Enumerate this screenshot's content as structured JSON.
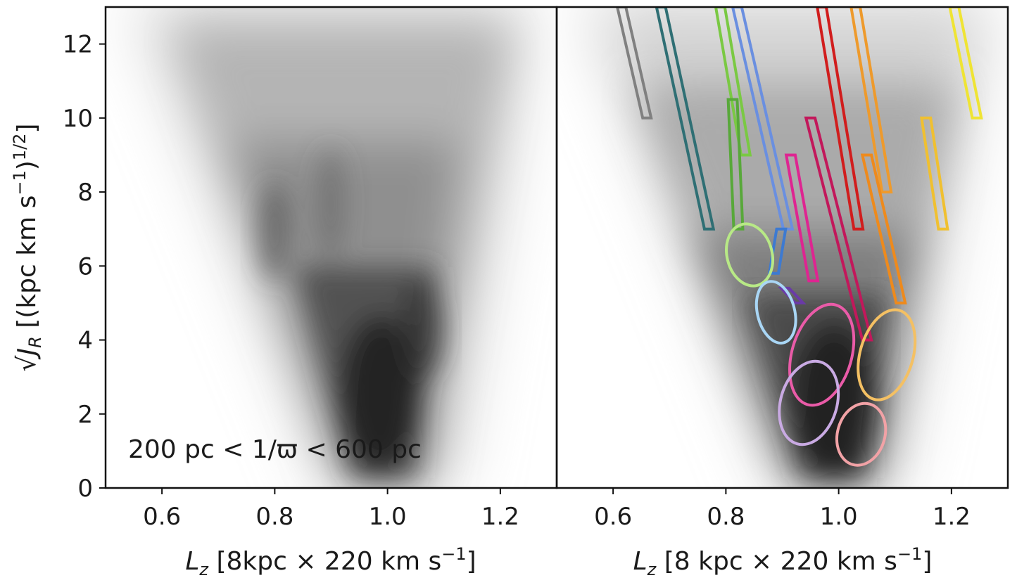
{
  "chart_data": [
    {
      "type": "scatter",
      "panel": "left",
      "title": "",
      "xlabel_prefix": "L",
      "xlabel_sub": "z",
      "xlabel_text": " [8kpc  × 220 km s",
      "xlabel_sup": "−1",
      "xlabel_close": "]",
      "ylabel_prefix": "√J",
      "ylabel_sub": "R",
      "ylabel_text": " [(kpc km s",
      "ylabel_sup1": "−1",
      "ylabel_mid": ")",
      "ylabel_sup2": "1/2",
      "ylabel_close": "]",
      "xlim": [
        0.5,
        1.3
      ],
      "ylim": [
        0,
        13
      ],
      "xticks": [
        0.6,
        0.8,
        1.0,
        1.2
      ],
      "xtick_labels": [
        "0.6",
        "0.8",
        "1.0",
        "1.2"
      ],
      "yticks": [
        0,
        2,
        4,
        6,
        8,
        10,
        12
      ],
      "ytick_labels": [
        "0",
        "2",
        "4",
        "6",
        "8",
        "10",
        "12"
      ],
      "annotation": "200 pc  < 1/ϖ < 600 pc",
      "density": "grayscale V-shaped star density, peak near Lz≈1.0, √JR≈2"
    },
    {
      "type": "scatter",
      "panel": "right",
      "xlabel_prefix": "L",
      "xlabel_sub": "z",
      "xlabel_text": " [8 kpc  × 220 km s",
      "xlabel_sup": "−1",
      "xlabel_close": "]",
      "xlim": [
        0.5,
        1.3
      ],
      "ylim": [
        0,
        13
      ],
      "xticks": [
        0.6,
        0.8,
        1.0,
        1.2
      ],
      "xtick_labels": [
        "0.6",
        "0.8",
        "1.0",
        "1.2"
      ],
      "boxes": [
        {
          "color": "#808080",
          "top": [
            0.615,
            13
          ],
          "bottom": [
            0.66,
            10
          ],
          "width": 0.015
        },
        {
          "color": "#2f6f74",
          "top": [
            0.685,
            13
          ],
          "bottom": [
            0.77,
            7
          ],
          "width": 0.016
        },
        {
          "color": "#7ac943",
          "top": [
            0.79,
            13
          ],
          "bottom": [
            0.835,
            9
          ],
          "width": 0.016
        },
        {
          "color": "#58a83a",
          "top": [
            0.812,
            10.5
          ],
          "bottom": [
            0.822,
            7
          ],
          "width": 0.016
        },
        {
          "color": "#6a8fe0",
          "top": [
            0.82,
            13
          ],
          "bottom": [
            0.91,
            7
          ],
          "width": 0.016
        },
        {
          "color": "#d11d1d",
          "top": [
            0.97,
            13
          ],
          "bottom": [
            1.035,
            7
          ],
          "width": 0.016
        },
        {
          "color": "#ee9a2c",
          "top": [
            1.03,
            13
          ],
          "bottom": [
            1.085,
            8
          ],
          "width": 0.016
        },
        {
          "color": "#efe434",
          "top": [
            1.205,
            13
          ],
          "bottom": [
            1.245,
            10
          ],
          "width": 0.016
        },
        {
          "color": "#f0c030",
          "top": [
            1.155,
            10
          ],
          "bottom": [
            1.185,
            7
          ],
          "width": 0.016
        },
        {
          "color": "#de2591",
          "top": [
            0.915,
            9
          ],
          "bottom": [
            0.955,
            5.6
          ],
          "width": 0.016
        },
        {
          "color": "#c2185b",
          "top": [
            0.95,
            10
          ],
          "bottom": [
            1.05,
            4
          ],
          "width": 0.016
        },
        {
          "color": "#ee8a1c",
          "top": [
            1.05,
            9
          ],
          "bottom": [
            1.11,
            5
          ],
          "width": 0.016
        },
        {
          "color": "#3d7ad1",
          "top": [
            0.898,
            7
          ],
          "bottom": [
            0.885,
            5.8
          ],
          "width": 0.016
        },
        {
          "color": "#6a3aa7",
          "top": [
            0.905,
            5.4
          ],
          "bottom": [
            0.93,
            5.0
          ],
          "width": 0.014
        }
      ],
      "ellipses": [
        {
          "color": "#b8e986",
          "cx": 0.842,
          "cy": 6.3,
          "a": 0.04,
          "b": 0.85,
          "angle": 0
        },
        {
          "color": "#a9d6f5",
          "cx": 0.889,
          "cy": 4.75,
          "a": 0.033,
          "b": 0.85,
          "angle": 0
        },
        {
          "color": "#ea5ba8",
          "cx": 0.97,
          "cy": 3.6,
          "a": 0.053,
          "b": 1.4,
          "angle": 0
        },
        {
          "color": "#c9aae3",
          "cx": 0.947,
          "cy": 2.3,
          "a": 0.05,
          "b": 1.15,
          "angle": 0
        },
        {
          "color": "#f2a2a6",
          "cx": 1.04,
          "cy": 1.45,
          "a": 0.042,
          "b": 0.85,
          "angle": 0
        },
        {
          "color": "#f4c063",
          "cx": 1.085,
          "cy": 3.6,
          "a": 0.047,
          "b": 1.25,
          "angle": 0
        }
      ]
    }
  ]
}
